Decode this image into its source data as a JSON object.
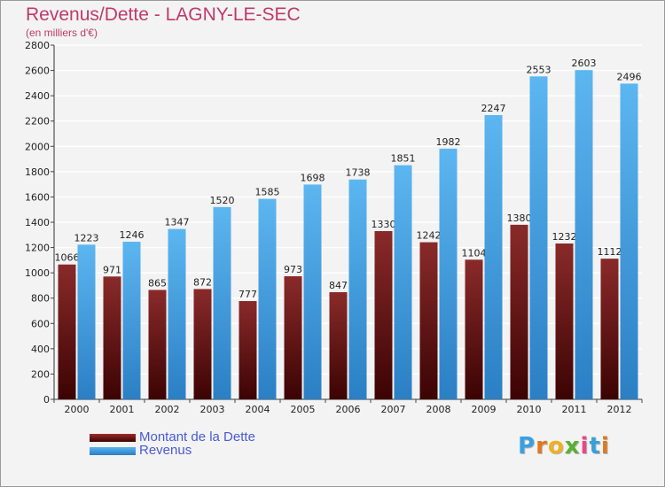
{
  "title": "Revenus/Dette - LAGNY-LE-SEC",
  "subtitle": "(en milliers d'€)",
  "brand": "Proxiti",
  "colors": {
    "dette": "#7a1a1a",
    "revenus": "#3d9ae2",
    "title": "#c03a6a",
    "legend_text": "#4a5ad6"
  },
  "chart_data": {
    "type": "bar",
    "title": "Revenus/Dette - LAGNY-LE-SEC",
    "subtitle": "(en milliers d'€)",
    "categories": [
      "2000",
      "2001",
      "2002",
      "2003",
      "2004",
      "2005",
      "2006",
      "2007",
      "2008",
      "2009",
      "2010",
      "2011",
      "2012"
    ],
    "series": [
      {
        "name": "Montant de la Dette",
        "values": [
          1066,
          971,
          865,
          872,
          777,
          973,
          847,
          1330,
          1242,
          1104,
          1380,
          1232,
          1112
        ]
      },
      {
        "name": "Revenus",
        "values": [
          1223,
          1246,
          1347,
          1520,
          1585,
          1698,
          1738,
          1851,
          1982,
          2247,
          2553,
          2603,
          2496
        ]
      }
    ],
    "ylim": [
      0,
      2800
    ],
    "yticks": [
      0,
      200,
      400,
      600,
      800,
      1000,
      1200,
      1400,
      1600,
      1800,
      2000,
      2200,
      2400,
      2600,
      2800
    ],
    "grid": true,
    "legend_position": "bottom-left"
  }
}
